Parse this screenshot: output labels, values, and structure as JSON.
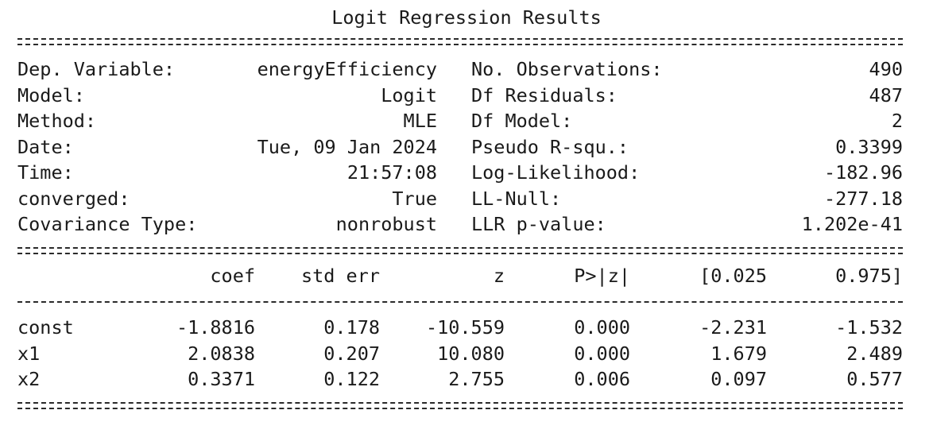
{
  "title": "Logit Regression Results",
  "info_left": [
    {
      "label": "Dep. Variable:",
      "value": "energyEfficiency"
    },
    {
      "label": "Model:",
      "value": "Logit"
    },
    {
      "label": "Method:",
      "value": "MLE"
    },
    {
      "label": "Date:",
      "value": "Tue, 09 Jan 2024"
    },
    {
      "label": "Time:",
      "value": "21:57:08"
    },
    {
      "label": "converged:",
      "value": "True"
    },
    {
      "label": "Covariance Type:",
      "value": "nonrobust"
    }
  ],
  "info_right": [
    {
      "label": "No. Observations:",
      "value": "490"
    },
    {
      "label": "Df Residuals:",
      "value": "487"
    },
    {
      "label": "Df Model:",
      "value": "2"
    },
    {
      "label": "Pseudo R-squ.:",
      "value": "0.3399"
    },
    {
      "label": "Log-Likelihood:",
      "value": "-182.96"
    },
    {
      "label": "LL-Null:",
      "value": "-277.18"
    },
    {
      "label": "LLR p-value:",
      "value": "1.202e-41"
    }
  ],
  "coef_table": {
    "headers": [
      "coef",
      "std err",
      "z",
      "P>|z|",
      "[0.025",
      "0.975]"
    ],
    "rows": [
      {
        "name": "const",
        "values": [
          "-1.8816",
          "0.178",
          "-10.559",
          "0.000",
          "-2.231",
          "-1.532"
        ]
      },
      {
        "name": "x1",
        "values": [
          "2.0838",
          "0.207",
          "10.080",
          "0.000",
          "1.679",
          "2.489"
        ]
      },
      {
        "name": "x2",
        "values": [
          "0.3371",
          "0.122",
          "2.755",
          "0.006",
          "0.097",
          "0.577"
        ]
      }
    ]
  }
}
